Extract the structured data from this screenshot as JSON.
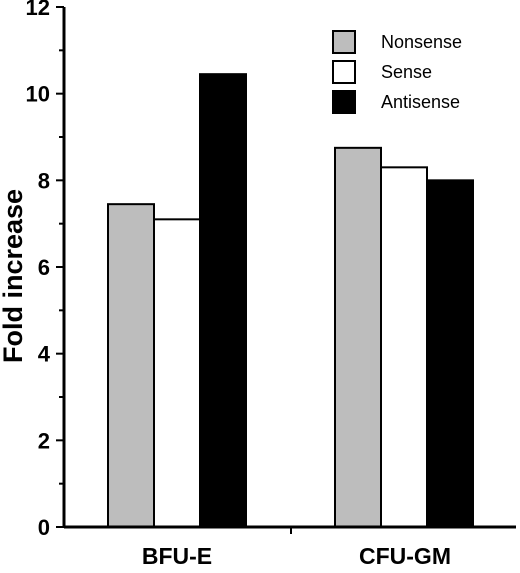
{
  "chart_data": {
    "type": "bar",
    "categories": [
      "BFU-E",
      "CFU-GM"
    ],
    "series": [
      {
        "name": "Nonsense",
        "values": [
          7.45,
          8.75
        ],
        "color": "#bdbdbd"
      },
      {
        "name": "Sense",
        "values": [
          7.1,
          8.3
        ],
        "color": "#ffffff"
      },
      {
        "name": "Antisense",
        "values": [
          10.45,
          8.0
        ],
        "color": "#000000"
      }
    ],
    "title": "",
    "xlabel": "",
    "ylabel": "Fold increase",
    "ylim": [
      0,
      12
    ],
    "yticks": [
      "0",
      "2",
      "4",
      "6",
      "8",
      "10",
      "12"
    ],
    "grid": false,
    "legend_position": "top-right"
  }
}
